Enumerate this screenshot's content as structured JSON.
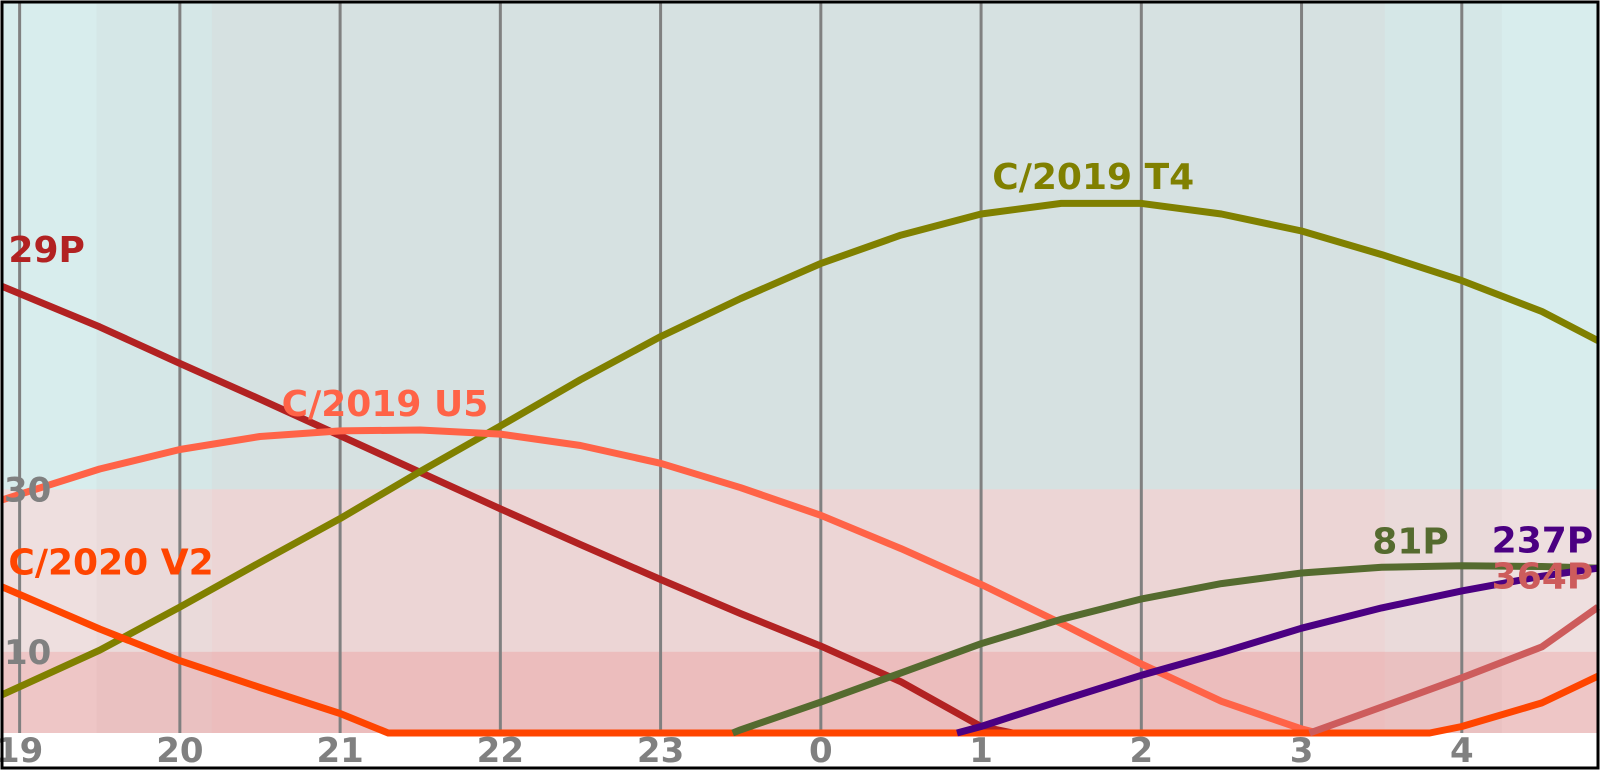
{
  "chart_data": {
    "type": "line",
    "title": "",
    "xlabel": "",
    "ylabel": "",
    "x_ticks": [
      "19",
      "20",
      "21",
      "22",
      "23",
      "0",
      "1",
      "2",
      "3",
      "4"
    ],
    "x_tick_values": [
      19,
      20,
      21,
      22,
      23,
      24,
      25,
      26,
      27,
      28
    ],
    "xlim": [
      18.89,
      28.85
    ],
    "y_ticks": [
      "10",
      "30"
    ],
    "y_tick_values": [
      10,
      30
    ],
    "ylim": [
      0,
      90
    ],
    "grid": {
      "vertical": true,
      "horizontal": false
    },
    "background_bands": {
      "horizontal": [
        {
          "from": 0,
          "to": 10,
          "color": "#ff0000"
        },
        {
          "from": 10,
          "to": 30,
          "color": "#ff8080"
        },
        {
          "from": 30,
          "to": 90,
          "color": "#8bc8c8"
        }
      ],
      "vertical": [
        {
          "from": 18.89,
          "to": 19.48,
          "color": "#d2ecec"
        },
        {
          "from": 19.48,
          "to": 20.2,
          "color": "#c9dcdc"
        },
        {
          "from": 20.2,
          "to": 27.52,
          "color": "#cccccc"
        },
        {
          "from": 27.52,
          "to": 28.25,
          "color": "#c9dcdc"
        },
        {
          "from": 28.25,
          "to": 28.85,
          "color": "#d2ecec"
        }
      ]
    },
    "series": [
      {
        "name": "29P",
        "color": "#b22222",
        "x": [
          18.89,
          19.5,
          20,
          20.5,
          21,
          21.5,
          22,
          22.5,
          23,
          23.5,
          24,
          24.5,
          25,
          25.2
        ],
        "y": [
          55,
          50,
          45.5,
          41.1,
          36.6,
          32.1,
          27.6,
          23.2,
          18.9,
          14.7,
          10.7,
          6.3,
          0.8,
          0
        ]
      },
      {
        "name": "C/2019 T4",
        "color": "#808000",
        "x": [
          18.89,
          19.5,
          20,
          20.5,
          21,
          21.5,
          22,
          22.5,
          23,
          23.5,
          24,
          24.5,
          25,
          25.5,
          26,
          26.5,
          27,
          27.5,
          28,
          28.5,
          28.85
        ],
        "y": [
          4.7,
          10.2,
          15.5,
          21,
          26.4,
          32.2,
          37.8,
          43.5,
          48.8,
          53.5,
          57.8,
          61.3,
          63.9,
          65.2,
          65.2,
          63.9,
          61.8,
          58.9,
          55.7,
          51.9,
          48.3
        ]
      },
      {
        "name": "C/2019 U5",
        "color": "#ff6347",
        "x": [
          18.89,
          19.5,
          20,
          20.5,
          21,
          21.5,
          22,
          22.5,
          23,
          23.5,
          24,
          24.5,
          25,
          25.5,
          26,
          26.5,
          27,
          27.1
        ],
        "y": [
          28.7,
          32.5,
          34.9,
          36.5,
          37.2,
          37.3,
          36.8,
          35.4,
          33.2,
          30.2,
          26.8,
          22.7,
          18.3,
          13.5,
          8.5,
          3.9,
          0.5,
          0
        ]
      },
      {
        "name": "C/2020 V2",
        "color": "#ff4500",
        "x": [
          18.89,
          19.5,
          20,
          20.5,
          21,
          21.3,
          21.5,
          22,
          23,
          24,
          25,
          26,
          27,
          27.8,
          28,
          28.5,
          28.85
        ],
        "y": [
          18,
          12.8,
          8.9,
          5.6,
          2.4,
          0,
          0,
          0,
          0,
          0,
          0,
          0,
          0,
          0,
          0.8,
          3.7,
          7
        ]
      },
      {
        "name": "81P",
        "color": "#556b2f",
        "x": [
          23.45,
          23.5,
          24,
          24.5,
          25,
          25.5,
          26,
          26.5,
          27,
          27.5,
          28,
          28.5,
          28.85
        ],
        "y": [
          0,
          0.4,
          3.8,
          7.4,
          11,
          14,
          16.5,
          18.4,
          19.7,
          20.4,
          20.6,
          20.5,
          20.3
        ]
      },
      {
        "name": "237P",
        "color": "#4b0082",
        "x": [
          24.85,
          25,
          25.5,
          26,
          26.5,
          27,
          27.5,
          28,
          28.5,
          28.85
        ],
        "y": [
          0,
          0.8,
          4,
          7.1,
          9.9,
          12.9,
          15.4,
          17.5,
          19.3,
          20.3
        ]
      },
      {
        "name": "364P",
        "color": "#cd5c5c",
        "x": [
          27.05,
          27.5,
          28,
          28.5,
          28.85
        ],
        "y": [
          0,
          3.2,
          6.8,
          10.6,
          15.5
        ]
      }
    ],
    "series_labels": [
      {
        "text": "29P",
        "x": 18.93,
        "y": 58,
        "anchor": "start"
      },
      {
        "text": "C/2019 T4",
        "x": 25.7,
        "y": 67,
        "anchor": "middle"
      },
      {
        "text": "C/2019 U5",
        "x": 21.28,
        "y": 39,
        "anchor": "middle"
      },
      {
        "text": "C/2020 V2",
        "x": 18.93,
        "y": 19.5,
        "anchor": "start"
      },
      {
        "text": "81P",
        "x": 27.68,
        "y": 22.1,
        "anchor": "middle"
      },
      {
        "text": "237P",
        "x": 28.82,
        "y": 22.2,
        "anchor": "end"
      },
      {
        "text": "364P",
        "x": 28.82,
        "y": 17.8,
        "anchor": "end"
      }
    ]
  }
}
